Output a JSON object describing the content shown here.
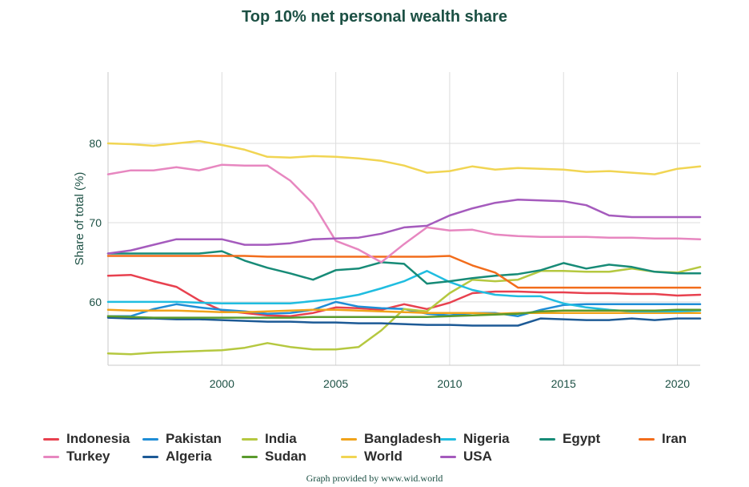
{
  "chart_data": {
    "type": "line",
    "title": "Top 10% net personal wealth share",
    "ylabel": "Share of total (%)",
    "xlabel": "",
    "xlim": [
      1995,
      2021
    ],
    "ylim": [
      52,
      89
    ],
    "xticks": [
      2000,
      2005,
      2010,
      2015,
      2020
    ],
    "yticks": [
      60,
      70,
      80
    ],
    "grid": true,
    "legend_position": "bottom",
    "x": [
      1995,
      1996,
      1997,
      1998,
      1999,
      2000,
      2001,
      2002,
      2003,
      2004,
      2005,
      2006,
      2007,
      2008,
      2009,
      2010,
      2011,
      2012,
      2013,
      2014,
      2015,
      2016,
      2017,
      2018,
      2019,
      2020,
      2021
    ],
    "series": [
      {
        "name": "Indonesia",
        "color": "#e8414f",
        "values": [
          63.3,
          63.4,
          62.6,
          61.9,
          60.2,
          58.9,
          58.6,
          58.3,
          58.2,
          58.6,
          59.3,
          59.2,
          59.0,
          59.7,
          59.1,
          59.9,
          61.1,
          61.3,
          61.3,
          61.2,
          61.2,
          61.1,
          61.1,
          61.0,
          61.0,
          60.8,
          60.9
        ]
      },
      {
        "name": "Pakistan",
        "color": "#1f8dd6",
        "values": [
          58.2,
          58.2,
          59.1,
          59.7,
          59.3,
          59.0,
          58.8,
          58.5,
          58.6,
          59.0,
          60.0,
          59.4,
          59.2,
          59.1,
          58.5,
          58.3,
          58.6,
          58.6,
          58.2,
          59.0,
          59.6,
          59.7,
          59.7,
          59.7,
          59.7,
          59.7,
          59.7
        ]
      },
      {
        "name": "India",
        "color": "#b5c840",
        "values": [
          53.5,
          53.4,
          53.6,
          53.7,
          53.8,
          53.9,
          54.2,
          54.8,
          54.3,
          54.0,
          54.0,
          54.3,
          56.4,
          59.1,
          58.8,
          61.1,
          62.8,
          62.6,
          62.8,
          63.9,
          63.9,
          63.8,
          63.8,
          64.2,
          63.8,
          63.7,
          64.4
        ]
      },
      {
        "name": "Bangladesh",
        "color": "#f0a31b",
        "values": [
          59.0,
          58.9,
          58.9,
          58.9,
          58.8,
          58.7,
          58.7,
          58.8,
          58.9,
          59.0,
          59.0,
          58.9,
          58.8,
          58.7,
          58.6,
          58.6,
          58.6,
          58.5,
          58.6,
          58.6,
          58.6,
          58.6,
          58.6,
          58.6,
          58.6,
          58.6,
          58.6
        ]
      },
      {
        "name": "Nigeria",
        "color": "#20bde0",
        "values": [
          60.0,
          60.0,
          60.0,
          60.0,
          59.9,
          59.8,
          59.8,
          59.8,
          59.8,
          60.1,
          60.4,
          60.9,
          61.7,
          62.6,
          63.9,
          62.5,
          61.5,
          60.9,
          60.7,
          60.7,
          59.8,
          59.3,
          59.0,
          58.8,
          58.8,
          58.8,
          58.9
        ]
      },
      {
        "name": "Egypt",
        "color": "#178b77",
        "values": [
          66.1,
          66.1,
          66.1,
          66.1,
          66.1,
          66.4,
          65.2,
          64.3,
          63.6,
          62.8,
          64.0,
          64.2,
          65.0,
          64.8,
          62.3,
          62.6,
          63.0,
          63.3,
          63.5,
          64.0,
          64.9,
          64.2,
          64.7,
          64.4,
          63.8,
          63.6,
          63.6
        ]
      },
      {
        "name": "Iran",
        "color": "#f26d1c",
        "values": [
          65.8,
          65.8,
          65.8,
          65.8,
          65.8,
          65.8,
          65.8,
          65.7,
          65.7,
          65.7,
          65.7,
          65.7,
          65.7,
          65.7,
          65.7,
          65.8,
          64.6,
          63.7,
          61.8,
          61.8,
          61.8,
          61.8,
          61.8,
          61.8,
          61.8,
          61.8,
          61.8
        ]
      },
      {
        "name": "Turkey",
        "color": "#e787c0",
        "values": [
          76.1,
          76.6,
          76.6,
          77.0,
          76.6,
          77.3,
          77.2,
          77.2,
          75.3,
          72.4,
          67.7,
          66.6,
          65.0,
          67.3,
          69.4,
          69.0,
          69.1,
          68.5,
          68.3,
          68.2,
          68.2,
          68.2,
          68.1,
          68.1,
          68.0,
          68.0,
          67.9
        ]
      },
      {
        "name": "Algeria",
        "color": "#1d5a96",
        "values": [
          58.0,
          57.9,
          57.9,
          57.8,
          57.8,
          57.7,
          57.6,
          57.5,
          57.5,
          57.4,
          57.4,
          57.3,
          57.3,
          57.2,
          57.1,
          57.1,
          57.0,
          57.0,
          57.0,
          57.9,
          57.8,
          57.7,
          57.7,
          57.9,
          57.7,
          57.9,
          57.9
        ]
      },
      {
        "name": "Sudan",
        "color": "#5a9a2d",
        "values": [
          58.2,
          58.1,
          58.0,
          58.0,
          58.0,
          58.0,
          58.0,
          58.0,
          58.0,
          58.1,
          58.1,
          58.1,
          58.1,
          58.1,
          58.1,
          58.2,
          58.3,
          58.4,
          58.5,
          58.8,
          58.9,
          58.9,
          58.9,
          58.9,
          58.9,
          59.0,
          59.0
        ]
      },
      {
        "name": "World",
        "color": "#f1d553",
        "values": [
          80.0,
          79.9,
          79.7,
          80.0,
          80.3,
          79.8,
          79.2,
          78.3,
          78.2,
          78.4,
          78.3,
          78.1,
          77.8,
          77.2,
          76.3,
          76.5,
          77.1,
          76.7,
          76.9,
          76.8,
          76.7,
          76.4,
          76.5,
          76.3,
          76.1,
          76.8,
          77.1
        ]
      },
      {
        "name": "USA",
        "color": "#a55bbd",
        "values": [
          66.1,
          66.5,
          67.2,
          67.9,
          67.9,
          67.9,
          67.2,
          67.2,
          67.4,
          67.9,
          68.0,
          68.1,
          68.6,
          69.4,
          69.6,
          70.9,
          71.8,
          72.5,
          72.9,
          72.8,
          72.7,
          72.2,
          70.9,
          70.7,
          70.7,
          70.7,
          70.7
        ]
      }
    ]
  },
  "legend_rows": [
    [
      "Indonesia",
      "Pakistan",
      "India",
      "Bangladesh",
      "Nigeria",
      "Egypt",
      "Iran"
    ],
    [
      "Turkey",
      "Algeria",
      "Sudan",
      "World",
      "USA"
    ]
  ],
  "footer": {
    "credit": "Graph provided by www.wid.world"
  }
}
